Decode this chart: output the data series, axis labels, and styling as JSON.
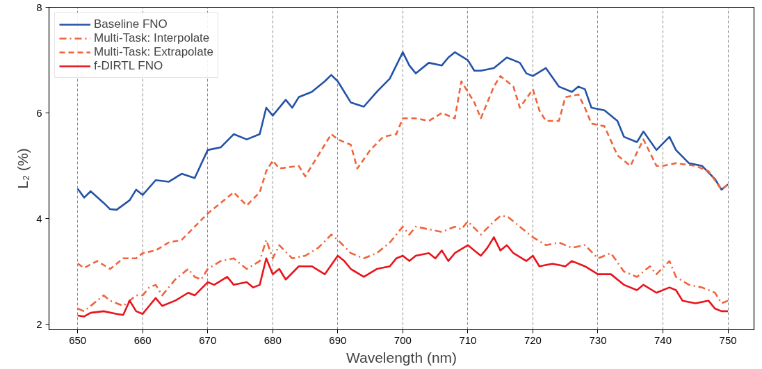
{
  "chart_data": {
    "type": "line",
    "xlabel": "Wavelength (nm)",
    "ylabel": "L₂ (%)",
    "xlim": [
      645.6,
      754
    ],
    "ylim": [
      1.9,
      8
    ],
    "xticks": [
      650,
      660,
      670,
      680,
      690,
      700,
      710,
      720,
      730,
      740,
      750
    ],
    "yticks": [
      2,
      4,
      6,
      8
    ],
    "grid": "x",
    "legend": "top left",
    "series": [
      {
        "name": "Baseline FNO",
        "color": "#2352a6",
        "line_style": "solid",
        "x": [
          650,
          651,
          652,
          654,
          655,
          656,
          658,
          659,
          660,
          662,
          664,
          666,
          668,
          670,
          672,
          674,
          676,
          678,
          679,
          680,
          682,
          683,
          684,
          686,
          688,
          689,
          690,
          692,
          694,
          696,
          698,
          700,
          701,
          702,
          704,
          706,
          707,
          708,
          710,
          711,
          712,
          714,
          716,
          718,
          719,
          720,
          722,
          724,
          726,
          727,
          728,
          729,
          731,
          733,
          734,
          736,
          737,
          739,
          741,
          742,
          744,
          746,
          748,
          749,
          750
        ],
        "values": [
          4.57,
          4.4,
          4.52,
          4.3,
          4.18,
          4.17,
          4.35,
          4.55,
          4.45,
          4.73,
          4.7,
          4.85,
          4.77,
          5.3,
          5.35,
          5.6,
          5.5,
          5.6,
          6.1,
          5.95,
          6.25,
          6.1,
          6.3,
          6.4,
          6.6,
          6.72,
          6.6,
          6.2,
          6.12,
          6.4,
          6.65,
          7.15,
          6.9,
          6.75,
          6.95,
          6.9,
          7.05,
          7.15,
          7.0,
          6.8,
          6.8,
          6.85,
          7.05,
          6.95,
          6.75,
          6.7,
          6.85,
          6.5,
          6.4,
          6.5,
          6.45,
          6.1,
          6.05,
          5.85,
          5.55,
          5.45,
          5.65,
          5.3,
          5.55,
          5.3,
          5.05,
          5.0,
          4.75,
          4.55,
          4.65
        ]
      },
      {
        "name": "Multi-Task: Interpolate",
        "color": "#f0643c",
        "line_style": "dashdot",
        "x": [
          650,
          651,
          653,
          654,
          655,
          657,
          659,
          660,
          661,
          662,
          663,
          665,
          667,
          668,
          669,
          670,
          672,
          674,
          676,
          678,
          679,
          680,
          681,
          683,
          685,
          687,
          689,
          690,
          692,
          694,
          696,
          698,
          700,
          701,
          702,
          704,
          706,
          708,
          709,
          710,
          712,
          714,
          715,
          716,
          718,
          719,
          720,
          722,
          724,
          726,
          728,
          730,
          732,
          734,
          736,
          738,
          739,
          741,
          742,
          744,
          746,
          748,
          749,
          750
        ],
        "values": [
          2.3,
          2.25,
          2.45,
          2.55,
          2.45,
          2.35,
          2.55,
          2.55,
          2.7,
          2.75,
          2.55,
          2.85,
          3.05,
          2.9,
          2.85,
          3.05,
          3.2,
          3.25,
          3.05,
          3.2,
          3.6,
          3.25,
          3.5,
          3.25,
          3.3,
          3.45,
          3.7,
          3.6,
          3.35,
          3.25,
          3.35,
          3.55,
          3.85,
          3.7,
          3.85,
          3.8,
          3.75,
          3.85,
          3.8,
          3.95,
          3.7,
          3.95,
          4.05,
          4.05,
          3.85,
          3.75,
          3.65,
          3.5,
          3.55,
          3.45,
          3.5,
          3.25,
          3.35,
          3.0,
          2.9,
          3.1,
          2.95,
          3.2,
          2.9,
          2.75,
          2.7,
          2.6,
          2.4,
          2.45
        ]
      },
      {
        "name": "Multi-Task: Extrapolate",
        "color": "#f0643c",
        "line_style": "dashed",
        "x": [
          650,
          651,
          653,
          655,
          657,
          659,
          660,
          662,
          664,
          666,
          668,
          670,
          672,
          674,
          676,
          678,
          679,
          680,
          681,
          684,
          685,
          687,
          689,
          690,
          692,
          693,
          695,
          697,
          699,
          700,
          702,
          704,
          706,
          708,
          709,
          711,
          712,
          714,
          715,
          716,
          717,
          718,
          720,
          721,
          722,
          724,
          725,
          727,
          728,
          729,
          731,
          733,
          735,
          737,
          739,
          740,
          742,
          745,
          747,
          749,
          750
        ],
        "values": [
          3.15,
          3.07,
          3.2,
          3.05,
          3.25,
          3.25,
          3.35,
          3.4,
          3.55,
          3.6,
          3.85,
          4.1,
          4.3,
          4.5,
          4.25,
          4.5,
          4.9,
          5.1,
          4.95,
          5.0,
          4.8,
          5.2,
          5.6,
          5.5,
          5.4,
          4.95,
          5.3,
          5.55,
          5.6,
          5.9,
          5.9,
          5.85,
          6.0,
          5.9,
          6.6,
          6.2,
          5.9,
          6.5,
          6.7,
          6.6,
          6.5,
          6.1,
          6.45,
          6.05,
          5.85,
          5.85,
          6.3,
          6.35,
          6.1,
          5.8,
          5.75,
          5.2,
          5.0,
          5.5,
          5.0,
          5.0,
          5.05,
          5.0,
          4.9,
          4.55,
          4.65
        ]
      },
      {
        "name": "f-DIRTL FNO",
        "color": "#e8141c",
        "line_style": "solid",
        "x": [
          650,
          651,
          652,
          654,
          656,
          657,
          658,
          659,
          660,
          661,
          662,
          663,
          665,
          667,
          668,
          670,
          671,
          673,
          674,
          676,
          677,
          678,
          679,
          680,
          681,
          682,
          684,
          686,
          688,
          690,
          691,
          692,
          694,
          696,
          698,
          699,
          700,
          701,
          702,
          704,
          705,
          706,
          707,
          708,
          710,
          711,
          712,
          713,
          714,
          715,
          716,
          717,
          719,
          720,
          721,
          723,
          725,
          726,
          728,
          730,
          732,
          734,
          736,
          737,
          739,
          741,
          742,
          743,
          745,
          747,
          748,
          749,
          750
        ],
        "values": [
          2.17,
          2.15,
          2.22,
          2.25,
          2.2,
          2.18,
          2.45,
          2.25,
          2.2,
          2.35,
          2.5,
          2.35,
          2.45,
          2.6,
          2.55,
          2.8,
          2.75,
          2.9,
          2.75,
          2.8,
          2.7,
          2.75,
          3.25,
          2.95,
          3.05,
          2.85,
          3.1,
          3.1,
          2.95,
          3.3,
          3.2,
          3.05,
          2.9,
          3.05,
          3.1,
          3.25,
          3.3,
          3.2,
          3.3,
          3.35,
          3.25,
          3.4,
          3.2,
          3.35,
          3.5,
          3.4,
          3.3,
          3.45,
          3.65,
          3.4,
          3.5,
          3.35,
          3.2,
          3.3,
          3.1,
          3.15,
          3.1,
          3.2,
          3.1,
          2.95,
          2.95,
          2.75,
          2.65,
          2.75,
          2.6,
          2.7,
          2.65,
          2.45,
          2.4,
          2.45,
          2.3,
          2.25,
          2.25
        ]
      }
    ]
  }
}
